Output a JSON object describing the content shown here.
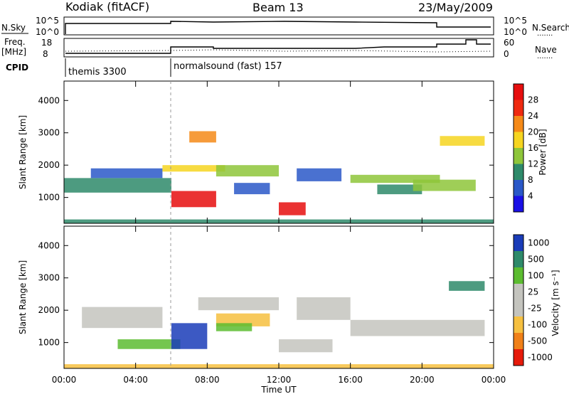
{
  "header": {
    "station": "Kodiak (fitACF)",
    "beam": "Beam 13",
    "date": "23/May/2009"
  },
  "labels": {
    "nsky": "N.Sky",
    "nsearch": "N.Search",
    "freq1": "Freq.",
    "freq2": "[MHz]",
    "nave": "Nave",
    "cpid": "CPID",
    "cpid1": "themis 3300",
    "cpid2": "normalsound (fast) 157",
    "noise_left_hi": "10^5",
    "noise_left_lo": "10^0",
    "noise_right_hi": "10^5",
    "noise_right_lo": "10^0",
    "freq_hi": "18",
    "freq_lo": "8",
    "nave_hi": "60",
    "nave_lo": "0",
    "dots": "......."
  },
  "chart_data": [
    {
      "type": "heatmap",
      "name": "power",
      "ylabel": "Slant Range [km]",
      "ylim": [
        200,
        4600
      ],
      "yticks": [
        "1000",
        "2000",
        "3000",
        "4000"
      ],
      "colorbar": {
        "label": "Power [dB]",
        "ticks": [
          "4",
          "8",
          "12",
          "16",
          "20",
          "24",
          "28"
        ],
        "colors": [
          "#1a10e6",
          "#2a58c8",
          "#2e8a6a",
          "#8ec63a",
          "#f6d520",
          "#f58a18",
          "#ef2a10",
          "#e60e0e"
        ]
      },
      "bands": [
        {
          "t0": 0.0,
          "t1": 6.0,
          "r0": 1150,
          "r1": 1600,
          "level": 2
        },
        {
          "t0": 1.5,
          "t1": 5.5,
          "r0": 1600,
          "r1": 1900,
          "level": 1
        },
        {
          "t0": 5.5,
          "t1": 9.0,
          "r0": 1800,
          "r1": 2000,
          "level": 4
        },
        {
          "t0": 6.0,
          "t1": 8.5,
          "r0": 700,
          "r1": 1200,
          "level": 7
        },
        {
          "t0": 8.5,
          "t1": 12.0,
          "r0": 1650,
          "r1": 2000,
          "level": 3
        },
        {
          "t0": 9.5,
          "t1": 11.5,
          "r0": 1100,
          "r1": 1450,
          "level": 1
        },
        {
          "t0": 12.0,
          "t1": 13.5,
          "r0": 450,
          "r1": 850,
          "level": 7
        },
        {
          "t0": 13.0,
          "t1": 15.5,
          "r0": 1500,
          "r1": 1900,
          "level": 1
        },
        {
          "t0": 16.0,
          "t1": 21.0,
          "r0": 1450,
          "r1": 1700,
          "level": 3
        },
        {
          "t0": 17.5,
          "t1": 20.0,
          "r0": 1100,
          "r1": 1400,
          "level": 2
        },
        {
          "t0": 19.5,
          "t1": 23.0,
          "r0": 1200,
          "r1": 1550,
          "level": 3
        },
        {
          "t0": 21.0,
          "t1": 23.5,
          "r0": 2600,
          "r1": 2900,
          "level": 4
        },
        {
          "t0": 7.0,
          "t1": 8.5,
          "r0": 2700,
          "r1": 3050,
          "level": 5
        },
        {
          "t0": 0.0,
          "t1": 24.0,
          "r0": 200,
          "r1": 320,
          "level": 2
        }
      ]
    },
    {
      "type": "heatmap",
      "name": "velocity",
      "ylabel": "Slant Range [km]",
      "ylim": [
        200,
        4600
      ],
      "yticks": [
        "1000",
        "2000",
        "3000",
        "4000"
      ],
      "colorbar": {
        "label": "Velocity [m s⁻¹]",
        "ticks": [
          "1000",
          "500",
          "100",
          "25",
          "-25",
          "-100",
          "-500",
          "-1000"
        ],
        "colors": [
          "#1a3cb8",
          "#2e8a6a",
          "#5cbc30",
          "#c4c4be",
          "#c4c4be",
          "#f6c040",
          "#f08018",
          "#e61a0a"
        ]
      },
      "bands": [
        {
          "t0": 1.0,
          "t1": 5.5,
          "r0": 1450,
          "r1": 2100,
          "level": 3
        },
        {
          "t0": 3.0,
          "t1": 6.5,
          "r0": 800,
          "r1": 1100,
          "level": 2
        },
        {
          "t0": 6.0,
          "t1": 8.0,
          "r0": 800,
          "r1": 1600,
          "level": 0
        },
        {
          "t0": 8.5,
          "t1": 11.5,
          "r0": 1500,
          "r1": 1900,
          "level": 5
        },
        {
          "t0": 8.5,
          "t1": 10.5,
          "r0": 1350,
          "r1": 1600,
          "level": 2
        },
        {
          "t0": 7.5,
          "t1": 12.0,
          "r0": 2000,
          "r1": 2400,
          "level": 3
        },
        {
          "t0": 13.0,
          "t1": 16.0,
          "r0": 1700,
          "r1": 2400,
          "level": 3
        },
        {
          "t0": 16.0,
          "t1": 23.5,
          "r0": 1200,
          "r1": 1700,
          "level": 3
        },
        {
          "t0": 12.0,
          "t1": 15.0,
          "r0": 700,
          "r1": 1100,
          "level": 3
        },
        {
          "t0": 21.5,
          "t1": 23.5,
          "r0": 2600,
          "r1": 2900,
          "level": 1
        },
        {
          "t0": 0.0,
          "t1": 24.0,
          "r0": 200,
          "r1": 330,
          "level": 5
        }
      ]
    }
  ],
  "xaxis": {
    "label": "Time UT",
    "ticks": [
      "00:00",
      "04:00",
      "08:00",
      "12:00",
      "16:00",
      "20:00",
      "00:00"
    ],
    "range": [
      0,
      24
    ]
  }
}
